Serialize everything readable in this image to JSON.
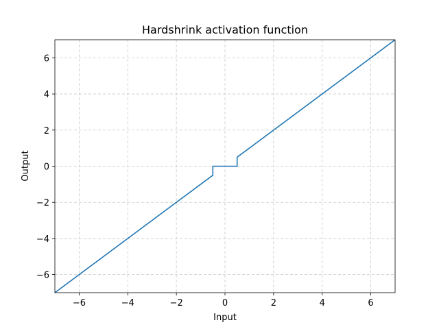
{
  "chart_data": {
    "type": "line",
    "title": "Hardshrink activation function",
    "x_label": "Input",
    "y_label": "Output",
    "x": [
      -7,
      -0.5,
      -0.5,
      0.5,
      0.5,
      7
    ],
    "values": [
      -7,
      -0.5,
      0,
      0,
      0.5,
      7
    ],
    "color": "#1f77b4",
    "xlim": [
      -7,
      7
    ],
    "ylim": [
      -7,
      7
    ],
    "xticks": [
      {
        "value": -6,
        "label": "−6"
      },
      {
        "value": -4,
        "label": "−4"
      },
      {
        "value": -2,
        "label": "−2"
      },
      0,
      2,
      4,
      6
    ],
    "yticks": [
      {
        "value": -6,
        "label": "−6"
      },
      {
        "value": -4,
        "label": "−4"
      },
      {
        "value": -2,
        "label": "−2"
      },
      0,
      2,
      4,
      6
    ],
    "grid": true
  }
}
